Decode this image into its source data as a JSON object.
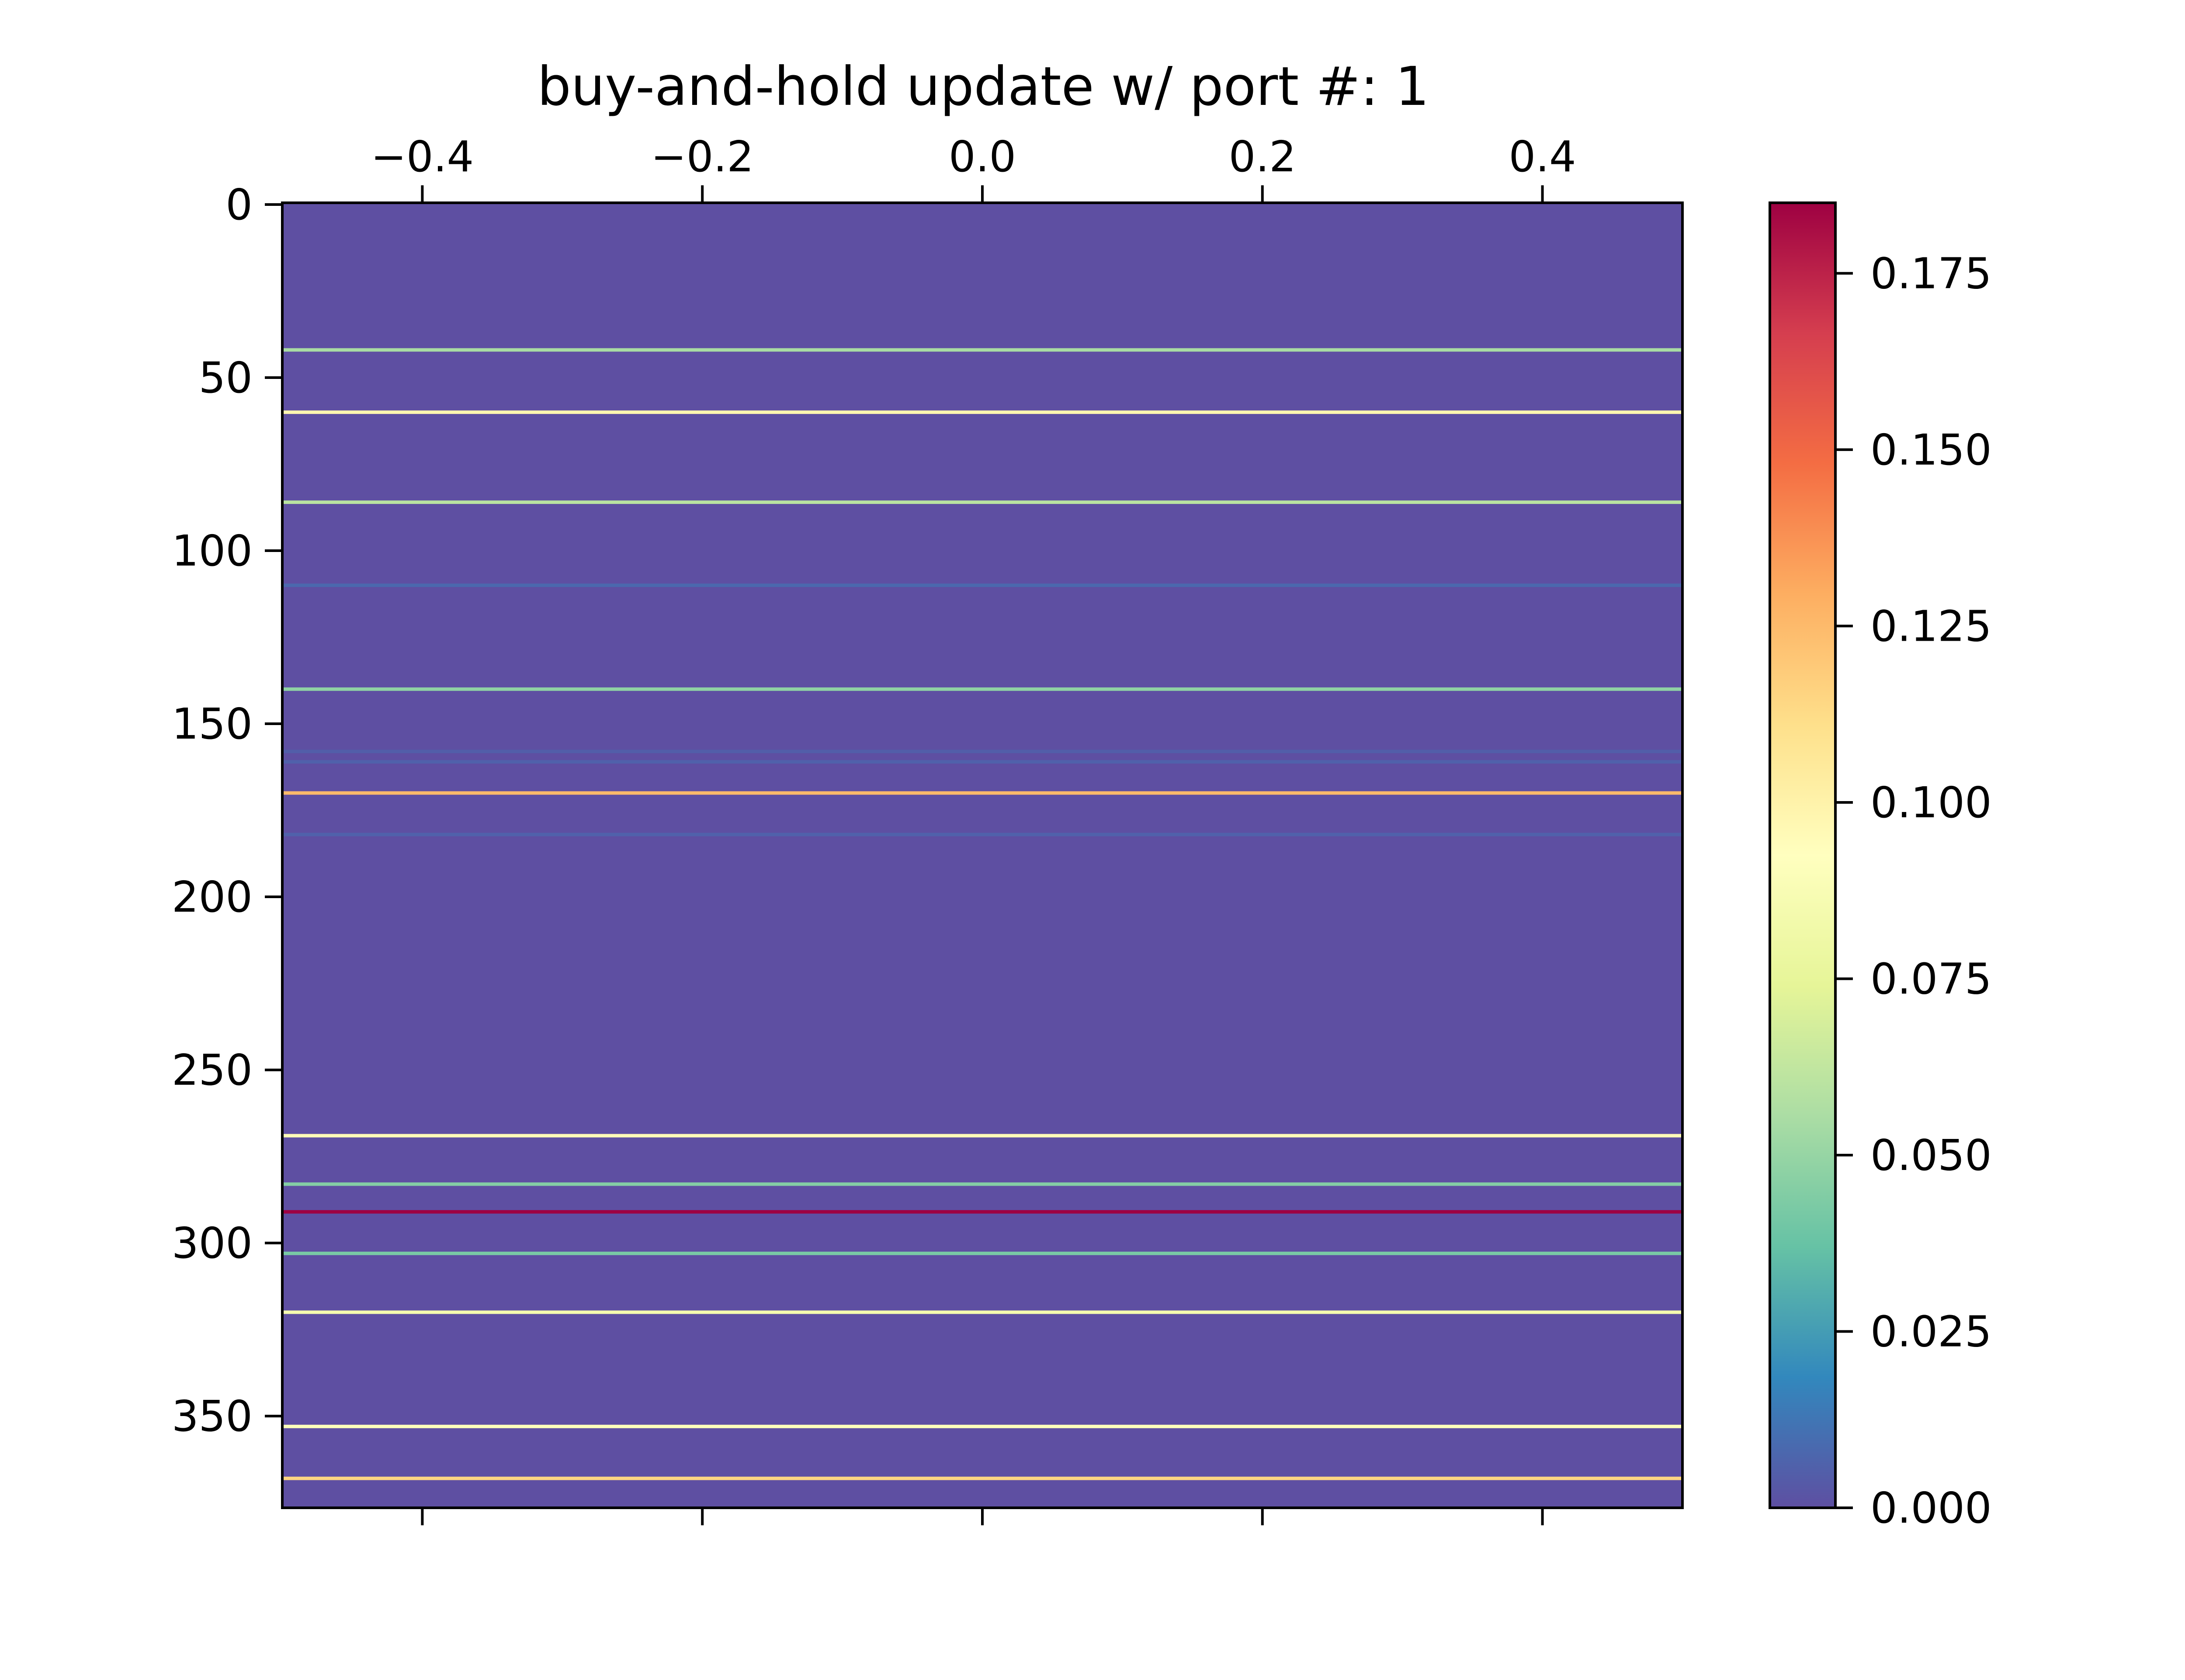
{
  "chart_data": {
    "type": "heatmap",
    "title": "buy-and-hold update w/ port #: 1",
    "xlabel": "",
    "ylabel": "",
    "x_axis_position": "top",
    "x_ticks": [
      "−0.4",
      "−0.2",
      "0.0",
      "0.2",
      "0.4"
    ],
    "x_tick_values": [
      -0.4,
      -0.2,
      0.0,
      0.2,
      0.4
    ],
    "xlim": [
      -0.5,
      0.5
    ],
    "y_ticks": [
      "0",
      "50",
      "100",
      "150",
      "200",
      "250",
      "300",
      "350"
    ],
    "y_tick_values": [
      0,
      50,
      100,
      150,
      200,
      250,
      300,
      350
    ],
    "ylim": [
      376.5,
      -0.5
    ],
    "n_rows": 377,
    "n_cols": 1,
    "background_value": 0.0,
    "colormap": "Spectral_r",
    "colormap_stops": [
      "#5e4fa2",
      "#3288bd",
      "#66c2a5",
      "#abdda4",
      "#e6f598",
      "#ffffbf",
      "#fee08b",
      "#fdae61",
      "#f46d43",
      "#d53e4f",
      "#9e0142"
    ],
    "vmin": 0.0,
    "vmax": 0.185,
    "nonzero_rows": [
      {
        "row": 42,
        "value": 0.055
      },
      {
        "row": 60,
        "value": 0.098
      },
      {
        "row": 86,
        "value": 0.06
      },
      {
        "row": 110,
        "value": 0.008
      },
      {
        "row": 140,
        "value": 0.048
      },
      {
        "row": 158,
        "value": 0.005
      },
      {
        "row": 161,
        "value": 0.006
      },
      {
        "row": 170,
        "value": 0.125
      },
      {
        "row": 182,
        "value": 0.006
      },
      {
        "row": 269,
        "value": 0.095
      },
      {
        "row": 283,
        "value": 0.045
      },
      {
        "row": 291,
        "value": 0.185
      },
      {
        "row": 303,
        "value": 0.042
      },
      {
        "row": 320,
        "value": 0.085
      },
      {
        "row": 353,
        "value": 0.09
      },
      {
        "row": 368,
        "value": 0.115
      }
    ],
    "colorbar": {
      "ticks": [
        "0.000",
        "0.025",
        "0.050",
        "0.075",
        "0.100",
        "0.125",
        "0.150",
        "0.175"
      ],
      "tick_values": [
        0.0,
        0.025,
        0.05,
        0.075,
        0.1,
        0.125,
        0.15,
        0.175
      ],
      "placement": "right"
    }
  }
}
